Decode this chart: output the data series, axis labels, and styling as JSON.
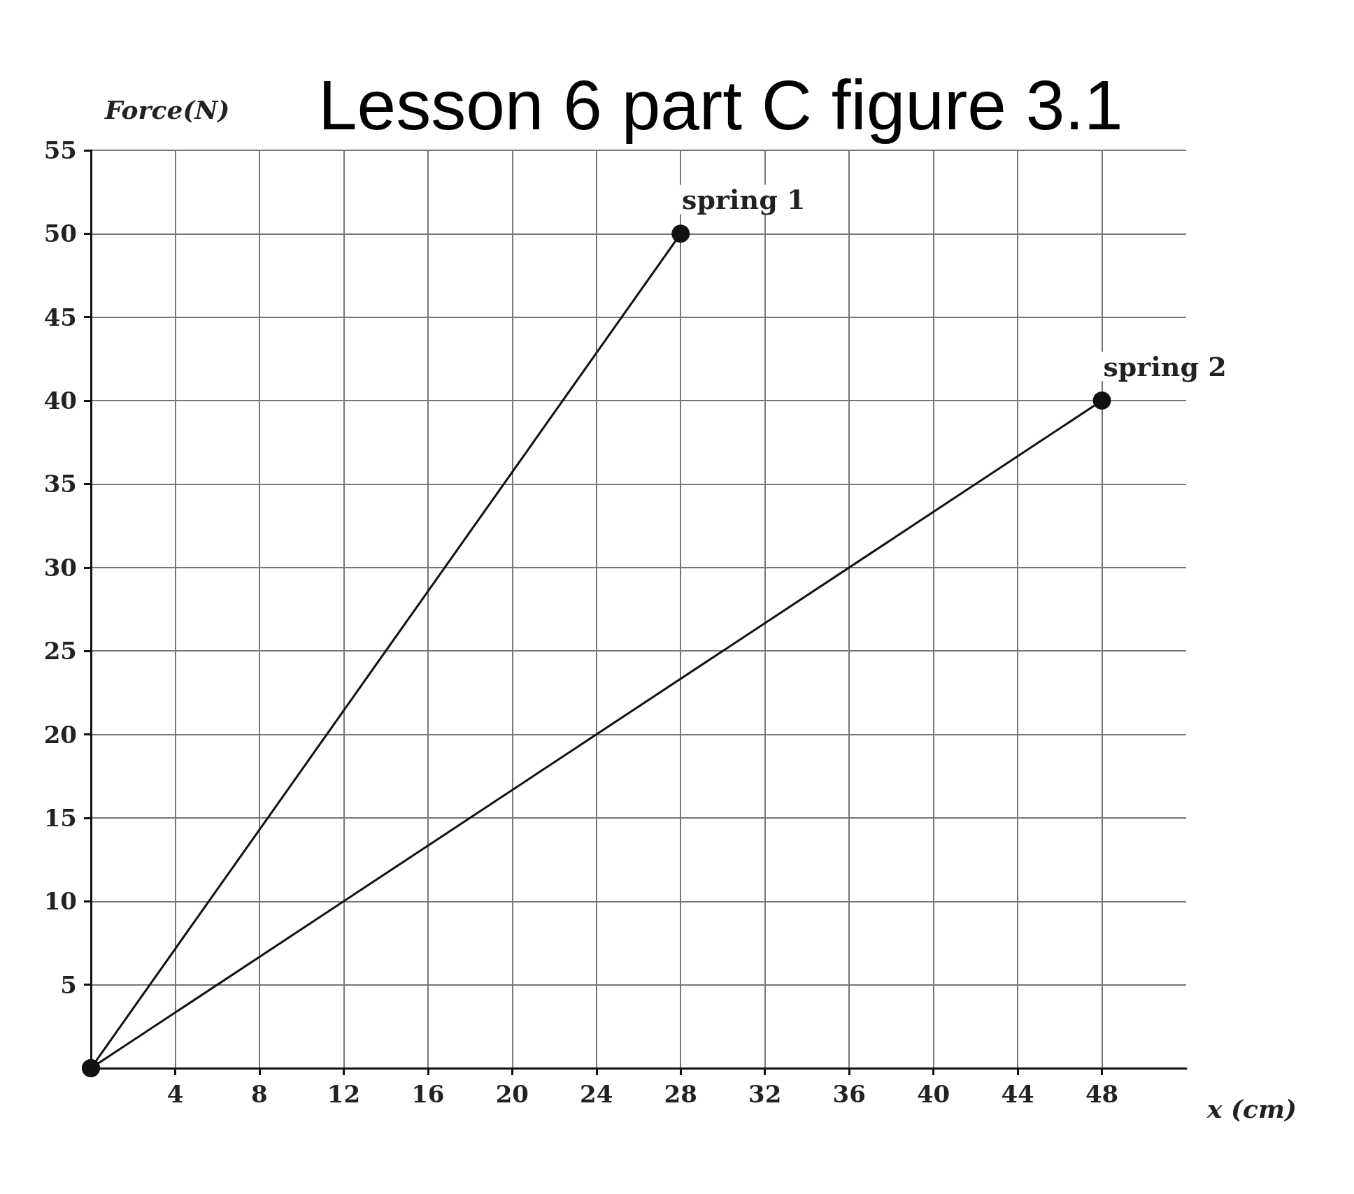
{
  "chart_data": {
    "type": "line",
    "title": "Lesson 6 part C figure 3.1",
    "xlabel": "x (cm)",
    "ylabel": "Force(N)",
    "series": [
      {
        "name": "spring 1",
        "color": "#111111",
        "x": [
          0,
          28
        ],
        "values": [
          0,
          50
        ]
      },
      {
        "name": "spring 2",
        "color": "#111111",
        "x": [
          0,
          48
        ],
        "values": [
          0,
          40
        ]
      }
    ],
    "xlim": [
      0,
      52
    ],
    "xticks": [
      4,
      8,
      12,
      16,
      20,
      24,
      28,
      32,
      36,
      40,
      44,
      48
    ],
    "ylim": [
      0,
      55
    ],
    "yticks": [
      5,
      10,
      15,
      20,
      25,
      30,
      35,
      40,
      45,
      50,
      55
    ],
    "grid": true,
    "marker": "circle",
    "line_style": "solid",
    "legend": false
  }
}
